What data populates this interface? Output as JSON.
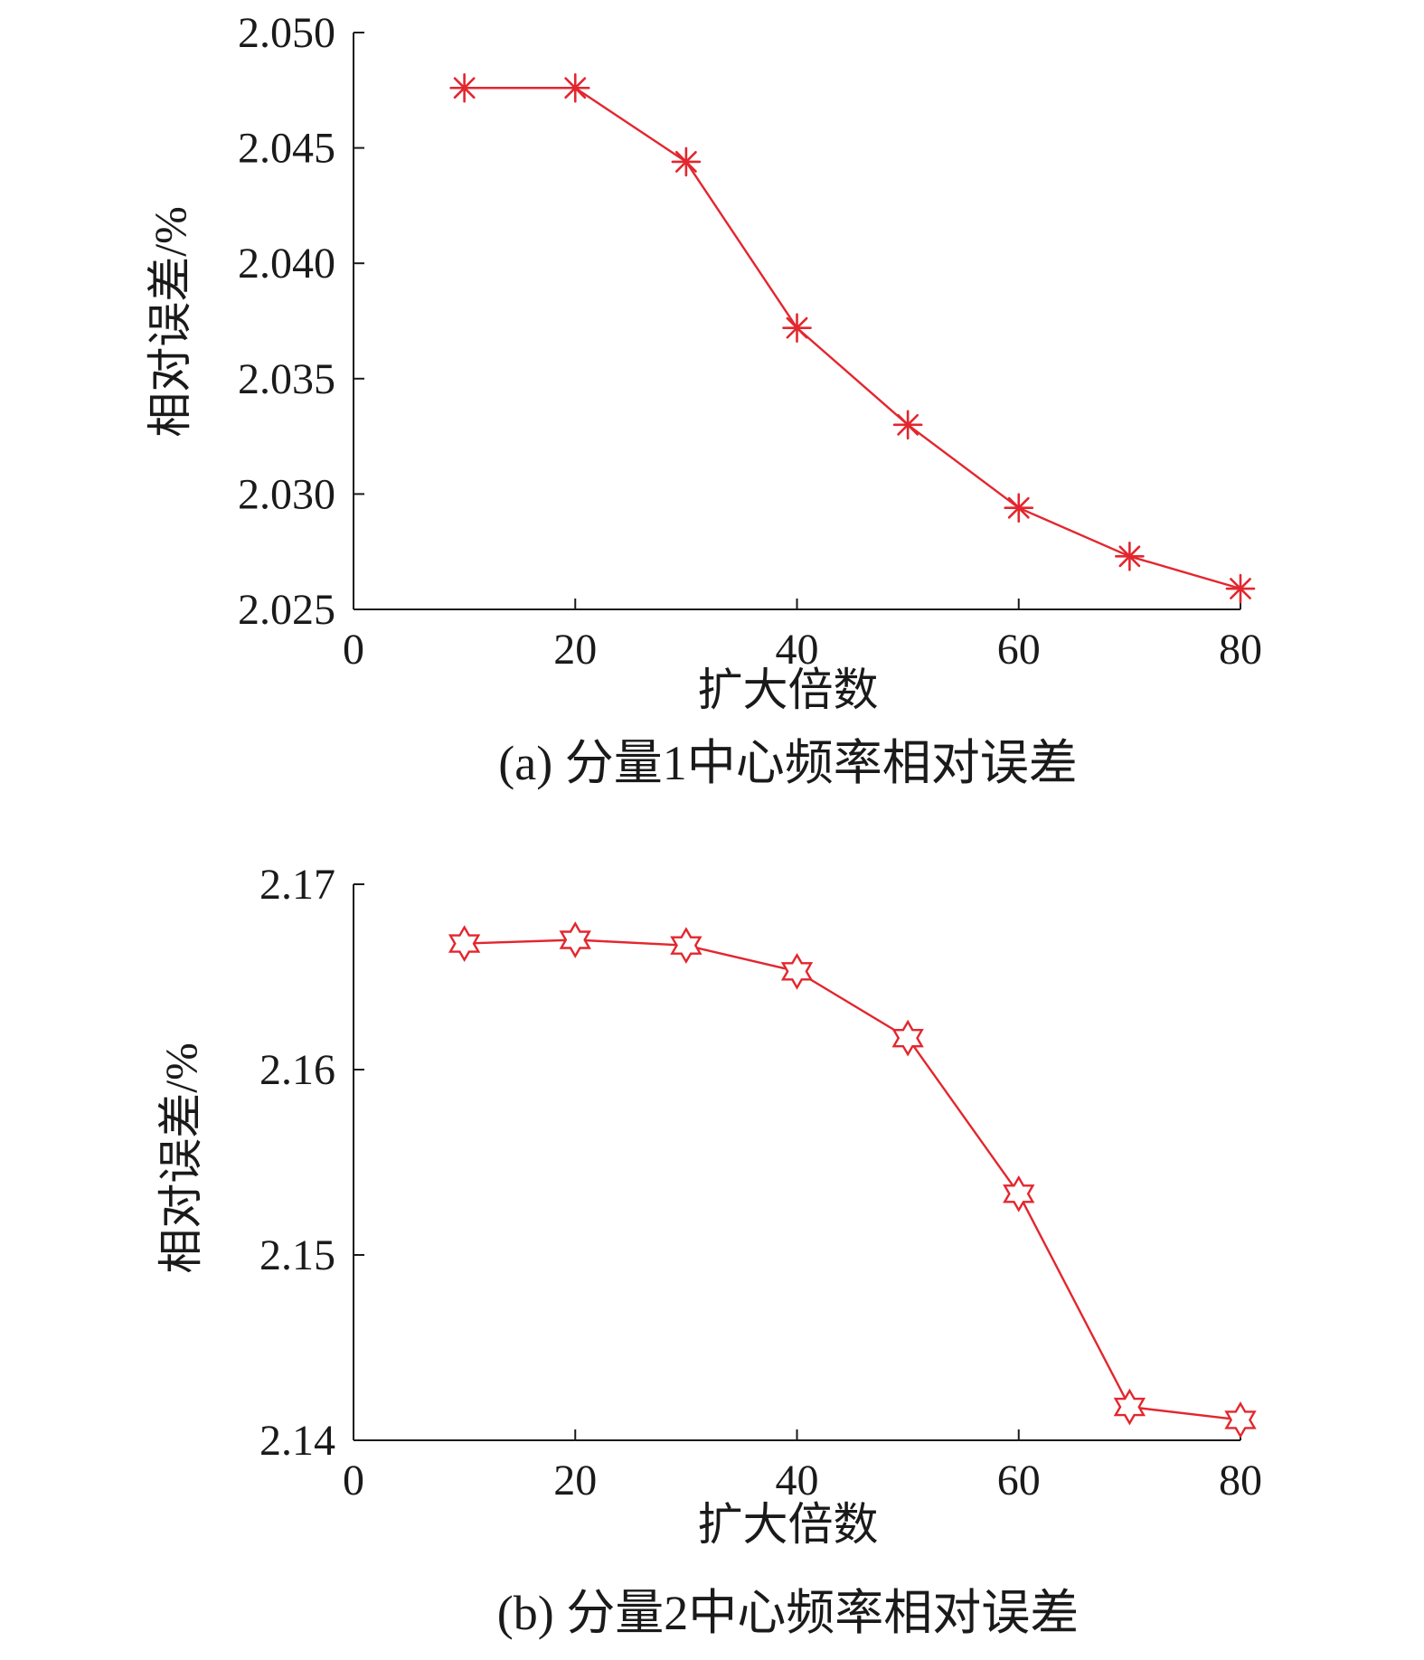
{
  "colors": {
    "series": "#e3262e",
    "axis": "#1a1a1a",
    "text": "#1a1a1a"
  },
  "chart_data": [
    {
      "type": "line",
      "caption": "(a) 分量1中心频率相对误差",
      "xlabel": "扩大倍数",
      "ylabel": "相对误差/%",
      "xlim": [
        0,
        80
      ],
      "ylim": [
        2.025,
        2.05
      ],
      "xticks": [
        0,
        20,
        40,
        60,
        80
      ],
      "yticks": [
        2.025,
        2.03,
        2.035,
        2.04,
        2.045,
        2.05
      ],
      "ytick_decimals": 3,
      "marker": "asterisk",
      "grid": false,
      "series": [
        {
          "x": [
            10,
            20,
            30,
            40,
            50,
            60,
            70,
            80
          ],
          "values": [
            2.0476,
            2.0476,
            2.0444,
            2.0372,
            2.033,
            2.0294,
            2.0273,
            2.0259
          ]
        }
      ]
    },
    {
      "type": "line",
      "caption": "(b) 分量2中心频率相对误差",
      "xlabel": "扩大倍数",
      "ylabel": "相对误差/%",
      "xlim": [
        0,
        80
      ],
      "ylim": [
        2.14,
        2.17
      ],
      "xticks": [
        0,
        20,
        40,
        60,
        80
      ],
      "yticks": [
        2.14,
        2.15,
        2.16,
        2.17
      ],
      "ytick_decimals": 2,
      "marker": "hexagram",
      "grid": false,
      "series": [
        {
          "x": [
            10,
            20,
            30,
            40,
            50,
            60,
            70,
            80
          ],
          "values": [
            2.1668,
            2.167,
            2.1667,
            2.1653,
            2.1617,
            2.1533,
            2.1418,
            2.1411
          ]
        }
      ]
    }
  ]
}
